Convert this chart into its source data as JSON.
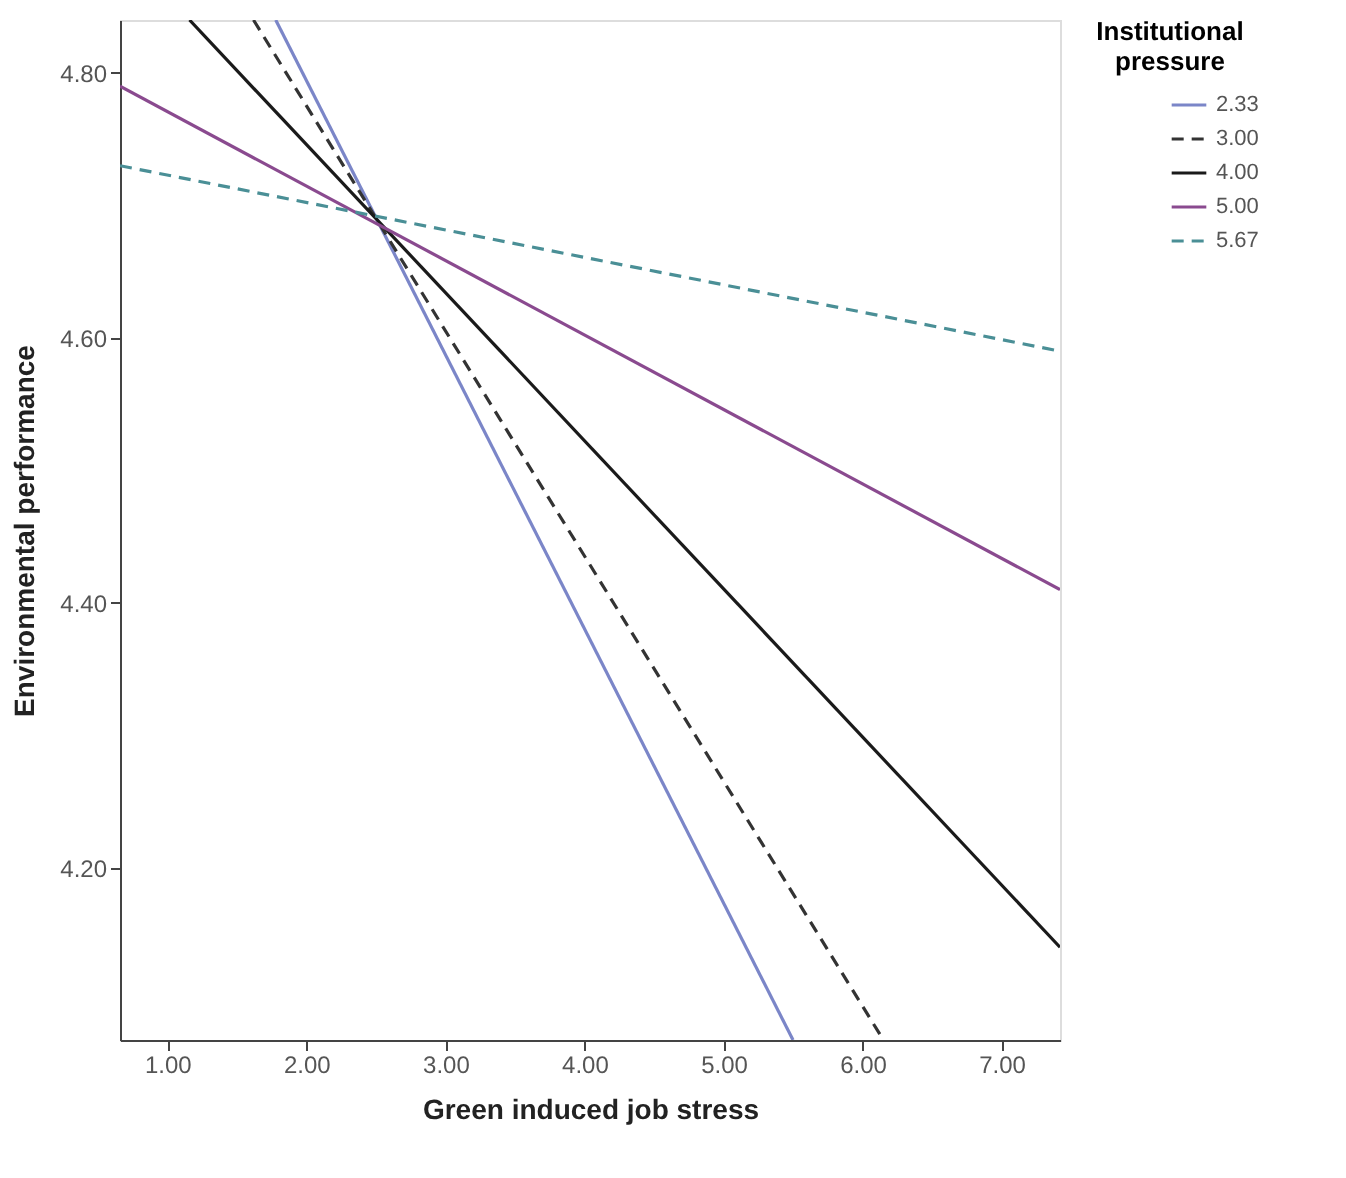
{
  "chart_data": {
    "type": "line",
    "xlabel": "Green induced job stress",
    "ylabel": "Environmental performance",
    "legend_title": "Institutional pressure",
    "legend": "right",
    "grid": false,
    "marker": "none",
    "xlim": [
      0.66,
      7.42
    ],
    "ylim": [
      4.07,
      4.84
    ],
    "xticks": [
      {
        "value": 1,
        "label": "1.00"
      },
      {
        "value": 2,
        "label": "2.00"
      },
      {
        "value": 3,
        "label": "3.00"
      },
      {
        "value": 4,
        "label": "4.00"
      },
      {
        "value": 5,
        "label": "5.00"
      },
      {
        "value": 6,
        "label": "6.00"
      },
      {
        "value": 7,
        "label": "7.00"
      }
    ],
    "yticks": [
      {
        "value": 4.2,
        "label": "4.20"
      },
      {
        "value": 4.4,
        "label": "4.40"
      },
      {
        "value": 4.6,
        "label": "4.60"
      },
      {
        "value": 4.8,
        "label": "4.80"
      }
    ],
    "series": [
      {
        "name": "2.33",
        "color": "#7b86c8",
        "line_style": "solid",
        "x": [
          1.78,
          5.5
        ],
        "values": [
          4.84,
          4.07
        ]
      },
      {
        "name": "3.00",
        "color": "#333333",
        "line_style": "dashed",
        "x": [
          1.62,
          6.15
        ],
        "values": [
          4.84,
          4.07
        ]
      },
      {
        "name": "4.00",
        "color": "#1a1a1a",
        "line_style": "solid",
        "x": [
          1.16,
          7.42
        ],
        "values": [
          4.84,
          4.14
        ]
      },
      {
        "name": "5.00",
        "color": "#8a4a8f",
        "line_style": "solid",
        "x": [
          0.66,
          7.42
        ],
        "values": [
          4.79,
          4.41
        ]
      },
      {
        "name": "5.67",
        "color": "#4a8f96",
        "line_style": "dashed",
        "x": [
          0.66,
          7.42
        ],
        "values": [
          4.73,
          4.59
        ]
      }
    ]
  }
}
